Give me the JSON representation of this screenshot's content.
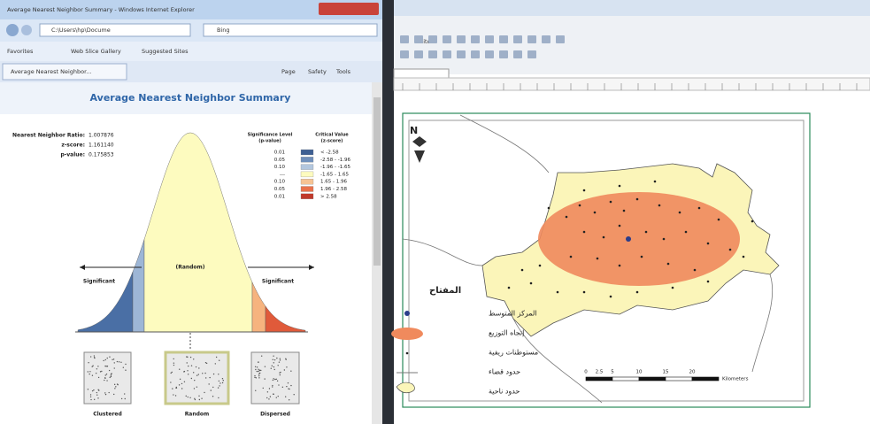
{
  "browser": {
    "title": "Average Nearest Neighbor Summary - Windows Internet Explorer",
    "address": "C:\\Users\\hp\\Docume",
    "search": "Bing",
    "favorites": [
      "Favorites",
      "Web Slice Gallery",
      "Suggested Sites"
    ],
    "tab": "Average Nearest Neighbor...",
    "commands": [
      "Page",
      "Safety",
      "Tools"
    ]
  },
  "report": {
    "heading": "Average Nearest Neighbor Summary",
    "stats": [
      {
        "label": "Nearest Neighbor Ratio:",
        "value": "1.007876"
      },
      {
        "label": "z-score:",
        "value": "1.161140"
      },
      {
        "label": "p-value:",
        "value": "0.175853"
      }
    ],
    "legend": {
      "significance_header": [
        "Significance Level",
        "(p-value)"
      ],
      "critical_header": [
        "Critical Value",
        "(z-score)"
      ],
      "rows": [
        [
          "0.01",
          "< -2.58"
        ],
        [
          "0.05",
          "-2.58 - -1.96"
        ],
        [
          "0.10",
          "-1.96 - -1.65"
        ],
        [
          "---",
          "-1.65 - 1.65"
        ],
        [
          "0.10",
          "1.65 - 1.96"
        ],
        [
          "0.05",
          "1.96 - 2.58"
        ],
        [
          "0.01",
          "> 2.58"
        ]
      ]
    },
    "tails": [
      "Significant",
      "Significant"
    ],
    "center": "(Random)",
    "patterns": [
      "Clustered",
      "Random",
      "Dispersed"
    ]
  },
  "map": {
    "toolbar": "Editor",
    "north": "N",
    "legend": {
      "title": "المفتاح",
      "items": [
        "المركز المتوسط",
        "إتجاه التوزيع",
        "مستوطنات ريفية",
        "حدود قضاء",
        "حدود ناحية"
      ]
    },
    "scale": {
      "ticks": [
        "0",
        "2.5",
        "5",
        "10",
        "15",
        "20"
      ],
      "unit": "Kilometers"
    }
  }
}
